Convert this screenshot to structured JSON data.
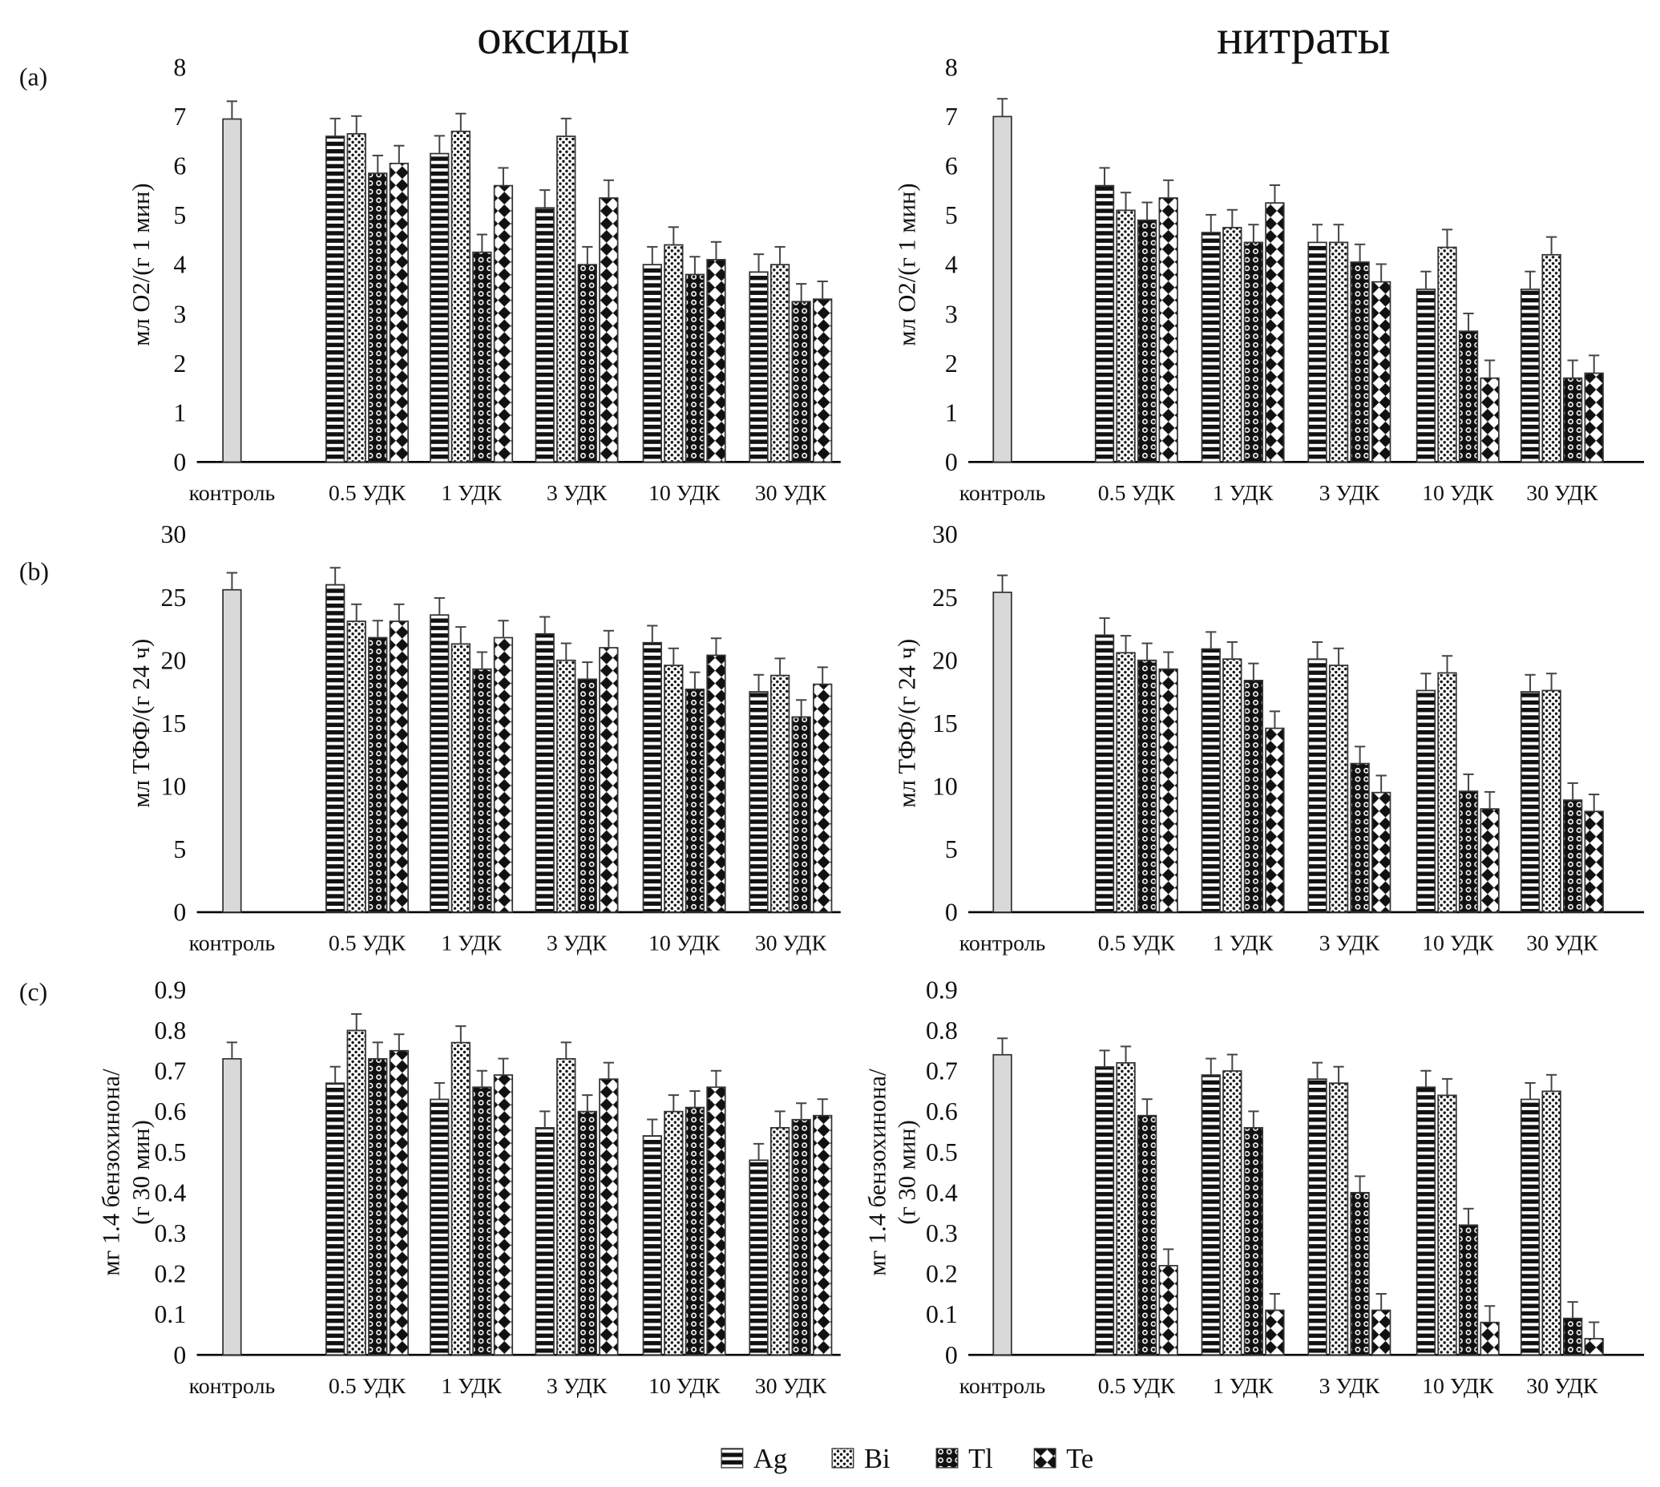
{
  "titles": {
    "left": "оксиды",
    "right": "нитраты"
  },
  "panel_labels": [
    "(a)",
    "(b)",
    "(c)"
  ],
  "legend": [
    {
      "name": "Ag",
      "pattern": "horizontal-stripes"
    },
    {
      "name": "Bi",
      "pattern": "dots"
    },
    {
      "name": "Tl",
      "pattern": "checker-circles"
    },
    {
      "name": "Te",
      "pattern": "diamonds"
    }
  ],
  "chart_data": [
    {
      "type": "bar",
      "panel": "(a)",
      "group": "оксиды",
      "ylabel": "мл O2/(г 1 мин)",
      "ylim": [
        0,
        8
      ],
      "yticks": [
        0,
        1,
        2,
        3,
        4,
        5,
        6,
        7,
        8
      ],
      "categories": [
        "контроль",
        "0.5 УДК",
        "1 УДК",
        "3 УДК",
        "10 УДК",
        "30 УДК"
      ],
      "control": 6.95,
      "series": [
        {
          "name": "Ag",
          "values": [
            null,
            6.6,
            6.25,
            5.15,
            4.0,
            3.85
          ]
        },
        {
          "name": "Bi",
          "values": [
            null,
            6.65,
            6.7,
            6.6,
            4.4,
            4.0
          ]
        },
        {
          "name": "Tl",
          "values": [
            null,
            5.85,
            4.25,
            4.0,
            3.8,
            3.25
          ]
        },
        {
          "name": "Te",
          "values": [
            null,
            6.05,
            5.6,
            5.35,
            4.1,
            3.3
          ]
        }
      ]
    },
    {
      "type": "bar",
      "panel": "(a)",
      "group": "нитраты",
      "ylabel": "мл O2/(г 1 мин)",
      "ylim": [
        0,
        8
      ],
      "yticks": [
        0,
        1,
        2,
        3,
        4,
        5,
        6,
        7,
        8
      ],
      "categories": [
        "контроль",
        "0.5 УДК",
        "1 УДК",
        "3 УДК",
        "10 УДК",
        "30 УДК"
      ],
      "control": 7.0,
      "series": [
        {
          "name": "Ag",
          "values": [
            null,
            5.6,
            4.65,
            4.45,
            3.5,
            3.5
          ]
        },
        {
          "name": "Bi",
          "values": [
            null,
            5.1,
            4.75,
            4.45,
            4.35,
            4.2
          ]
        },
        {
          "name": "Tl",
          "values": [
            null,
            4.9,
            4.45,
            4.05,
            2.65,
            1.7
          ]
        },
        {
          "name": "Te",
          "values": [
            null,
            5.35,
            5.25,
            3.65,
            1.7,
            1.8
          ]
        }
      ]
    },
    {
      "type": "bar",
      "panel": "(b)",
      "group": "оксиды",
      "ylabel": "мл ТФФ/(г 24 ч)",
      "ylim": [
        0,
        30
      ],
      "yticks": [
        0,
        5,
        10,
        15,
        20,
        25,
        30
      ],
      "categories": [
        "контроль",
        "0.5 УДК",
        "1 УДК",
        "3 УДК",
        "10 УДК",
        "30 УДК"
      ],
      "control": 25.6,
      "series": [
        {
          "name": "Ag",
          "values": [
            null,
            26.0,
            23.6,
            22.1,
            21.4,
            17.5
          ]
        },
        {
          "name": "Bi",
          "values": [
            null,
            23.1,
            21.3,
            20.0,
            19.6,
            18.8
          ]
        },
        {
          "name": "Tl",
          "values": [
            null,
            21.8,
            19.3,
            18.5,
            17.7,
            15.5
          ]
        },
        {
          "name": "Te",
          "values": [
            null,
            23.1,
            21.8,
            21.0,
            20.4,
            18.1
          ]
        }
      ]
    },
    {
      "type": "bar",
      "panel": "(b)",
      "group": "нитраты",
      "ylabel": "мл ТФФ/(г 24 ч)",
      "ylim": [
        0,
        30
      ],
      "yticks": [
        0,
        5,
        10,
        15,
        20,
        25,
        30
      ],
      "categories": [
        "контроль",
        "0.5 УДК",
        "1 УДК",
        "3 УДК",
        "10 УДК",
        "30 УДК"
      ],
      "control": 25.4,
      "series": [
        {
          "name": "Ag",
          "values": [
            null,
            22.0,
            20.9,
            20.1,
            17.6,
            17.5
          ]
        },
        {
          "name": "Bi",
          "values": [
            null,
            20.6,
            20.1,
            19.6,
            19.0,
            17.6
          ]
        },
        {
          "name": "Tl",
          "values": [
            null,
            20.0,
            18.4,
            11.8,
            9.6,
            8.9
          ]
        },
        {
          "name": "Te",
          "values": [
            null,
            19.3,
            14.6,
            9.5,
            8.2,
            8.0
          ]
        }
      ]
    },
    {
      "type": "bar",
      "panel": "(c)",
      "group": "оксиды",
      "ylabel": "мг 1.4 бензохинона/ (г 30 мин)",
      "ylim": [
        0,
        0.9
      ],
      "yticks": [
        0,
        0.1,
        0.2,
        0.3,
        0.4,
        0.5,
        0.6,
        0.7,
        0.8,
        0.9
      ],
      "categories": [
        "контроль",
        "0.5 УДК",
        "1 УДК",
        "3 УДК",
        "10 УДК",
        "30 УДК"
      ],
      "control": 0.73,
      "series": [
        {
          "name": "Ag",
          "values": [
            null,
            0.67,
            0.63,
            0.56,
            0.54,
            0.48
          ]
        },
        {
          "name": "Bi",
          "values": [
            null,
            0.8,
            0.77,
            0.73,
            0.6,
            0.56
          ]
        },
        {
          "name": "Tl",
          "values": [
            null,
            0.73,
            0.66,
            0.6,
            0.61,
            0.58
          ]
        },
        {
          "name": "Te",
          "values": [
            null,
            0.75,
            0.69,
            0.68,
            0.66,
            0.59
          ]
        }
      ]
    },
    {
      "type": "bar",
      "panel": "(c)",
      "group": "нитраты",
      "ylabel": "мг 1.4 бензохинона/ (г 30 мин)",
      "ylim": [
        0,
        0.9
      ],
      "yticks": [
        0,
        0.1,
        0.2,
        0.3,
        0.4,
        0.5,
        0.6,
        0.7,
        0.8,
        0.9
      ],
      "categories": [
        "контроль",
        "0.5 УДК",
        "1 УДК",
        "3 УДК",
        "10 УДК",
        "30 УДК"
      ],
      "control": 0.74,
      "series": [
        {
          "name": "Ag",
          "values": [
            null,
            0.71,
            0.69,
            0.68,
            0.66,
            0.63
          ]
        },
        {
          "name": "Bi",
          "values": [
            null,
            0.72,
            0.7,
            0.67,
            0.64,
            0.65
          ]
        },
        {
          "name": "Tl",
          "values": [
            null,
            0.59,
            0.56,
            0.4,
            0.32,
            0.09
          ]
        },
        {
          "name": "Te",
          "values": [
            null,
            0.22,
            0.11,
            0.11,
            0.08,
            0.04
          ]
        }
      ]
    }
  ]
}
